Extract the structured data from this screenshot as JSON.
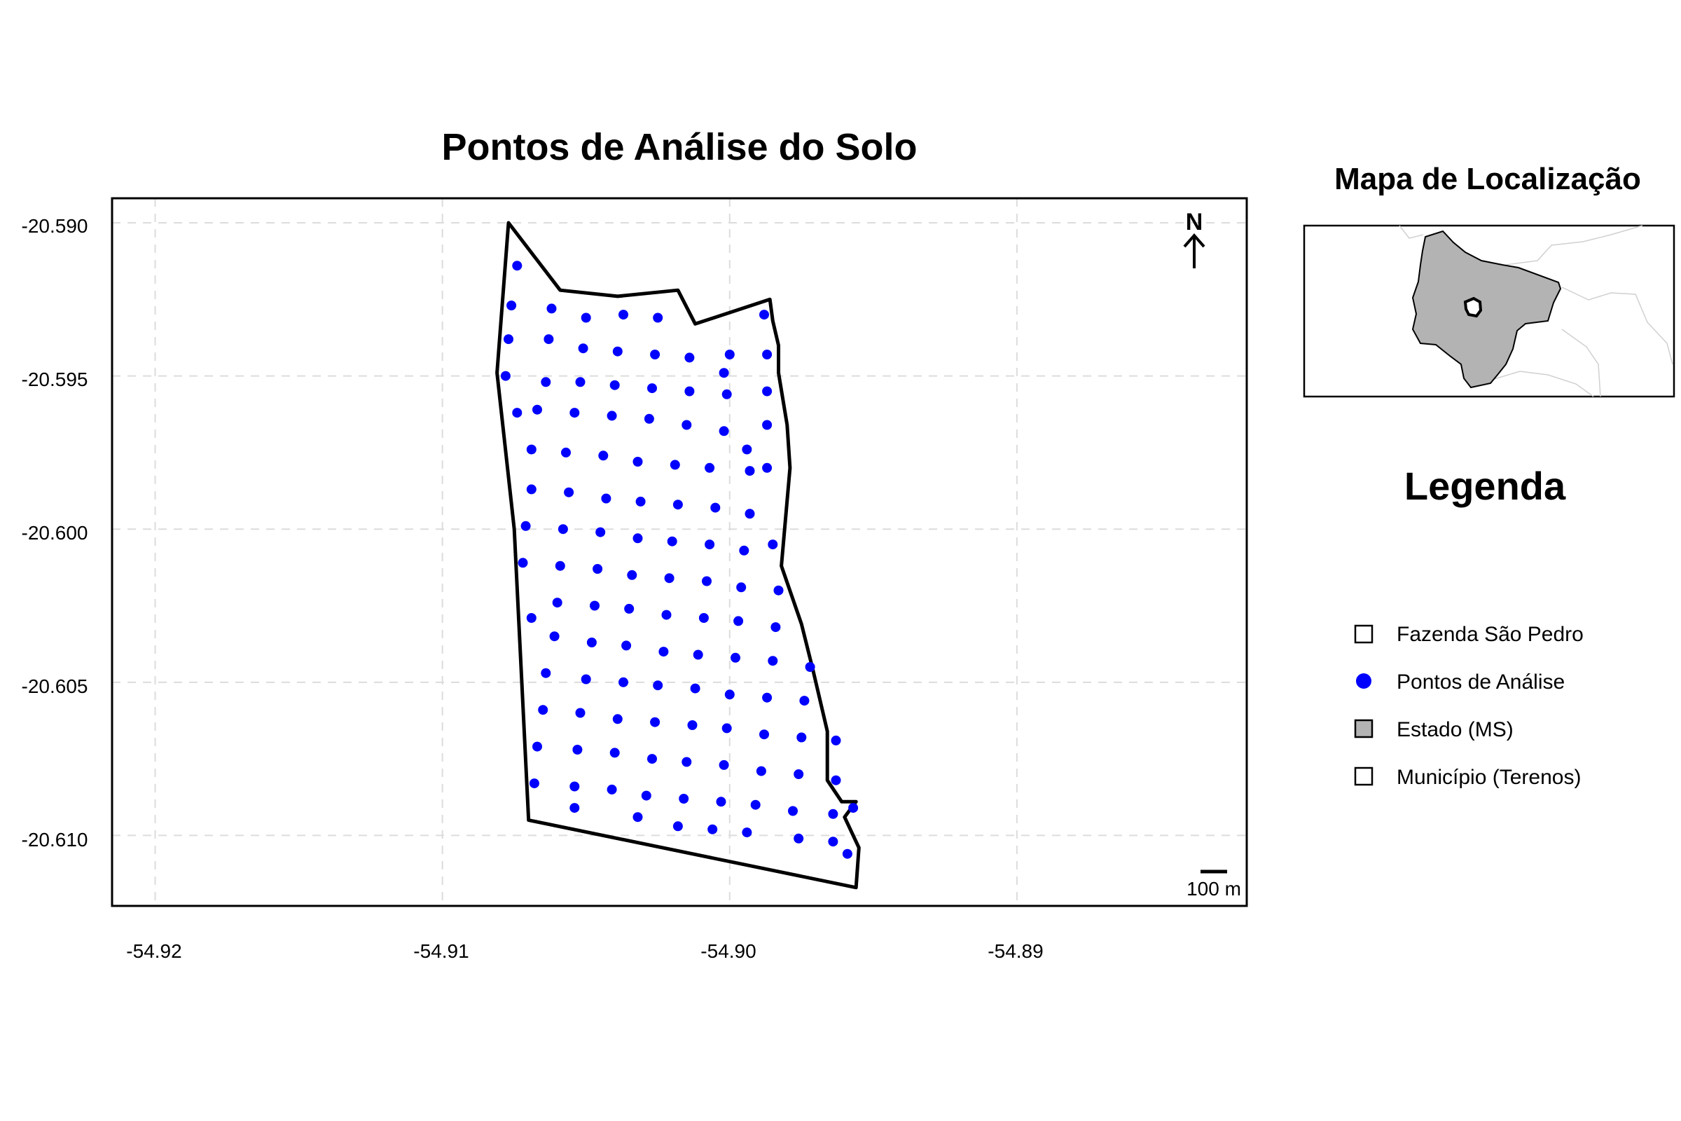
{
  "main_map": {
    "title": "Pontos de Análise do Solo",
    "x_ticks": [
      "-54.92",
      "-54.91",
      "-54.90",
      "-54.89"
    ],
    "y_ticks": [
      "-20.590",
      "-20.595",
      "-20.600",
      "-20.605",
      "-20.610"
    ],
    "north_label": "N",
    "scale_label": "100 m",
    "xlim": [
      -54.9215,
      -54.882
    ],
    "ylim": [
      -20.6123,
      -20.5892
    ],
    "grid": true,
    "boundary_color": "#000000",
    "point_color": "#0000ff"
  },
  "chart_data": {
    "type": "scatter",
    "title": "Pontos de Análise do Solo",
    "xlim": [
      -54.9215,
      -54.882
    ],
    "ylim": [
      -20.6123,
      -20.5892
    ],
    "grid": true,
    "boundary": [
      [
        -54.9077,
        -20.59
      ],
      [
        -54.9059,
        -20.5922
      ],
      [
        -54.9039,
        -20.5924
      ],
      [
        -54.9018,
        -20.5922
      ],
      [
        -54.9012,
        -20.5933
      ],
      [
        -54.8986,
        -20.5925
      ],
      [
        -54.8985,
        -20.5932
      ],
      [
        -54.8983,
        -20.594
      ],
      [
        -54.8983,
        -20.5949
      ],
      [
        -54.898,
        -20.5966
      ],
      [
        -54.8979,
        -20.598
      ],
      [
        -54.8982,
        -20.6012
      ],
      [
        -54.8975,
        -20.6031
      ],
      [
        -54.8971,
        -20.6046
      ],
      [
        -54.8966,
        -20.6066
      ],
      [
        -54.8966,
        -20.6082
      ],
      [
        -54.8961,
        -20.6089
      ],
      [
        -54.8956,
        -20.6089
      ],
      [
        -54.896,
        -20.6094
      ],
      [
        -54.8955,
        -20.6104
      ],
      [
        -54.8956,
        -20.6117
      ],
      [
        -54.907,
        -20.6095
      ],
      [
        -54.9075,
        -20.6
      ],
      [
        -54.9081,
        -20.5949
      ],
      [
        -54.9077,
        -20.59
      ]
    ],
    "points": [
      [
        -54.9074,
        -20.5914
      ],
      [
        -54.9076,
        -20.5927
      ],
      [
        -54.9062,
        -20.5928
      ],
      [
        -54.905,
        -20.5931
      ],
      [
        -54.9037,
        -20.593
      ],
      [
        -54.9025,
        -20.5931
      ],
      [
        -54.8988,
        -20.593
      ],
      [
        -54.9077,
        -20.5938
      ],
      [
        -54.9063,
        -20.5938
      ],
      [
        -54.9051,
        -20.5941
      ],
      [
        -54.9039,
        -20.5942
      ],
      [
        -54.9026,
        -20.5943
      ],
      [
        -54.9014,
        -20.5944
      ],
      [
        -54.9,
        -20.5943
      ],
      [
        -54.8987,
        -20.5943
      ],
      [
        -54.9078,
        -20.595
      ],
      [
        -54.9064,
        -20.5952
      ],
      [
        -54.9052,
        -20.5952
      ],
      [
        -54.904,
        -20.5953
      ],
      [
        -54.9027,
        -20.5954
      ],
      [
        -54.9014,
        -20.5955
      ],
      [
        -54.9002,
        -20.5949
      ],
      [
        -54.9001,
        -20.5956
      ],
      [
        -54.8987,
        -20.5955
      ],
      [
        -54.9074,
        -20.5962
      ],
      [
        -54.9067,
        -20.5961
      ],
      [
        -54.9054,
        -20.5962
      ],
      [
        -54.9041,
        -20.5963
      ],
      [
        -54.9028,
        -20.5964
      ],
      [
        -54.9015,
        -20.5966
      ],
      [
        -54.9002,
        -20.5968
      ],
      [
        -54.8987,
        -20.5966
      ],
      [
        -54.9069,
        -20.5974
      ],
      [
        -54.9057,
        -20.5975
      ],
      [
        -54.9044,
        -20.5976
      ],
      [
        -54.9032,
        -20.5978
      ],
      [
        -54.9019,
        -20.5979
      ],
      [
        -54.9007,
        -20.598
      ],
      [
        -54.8994,
        -20.5974
      ],
      [
        -54.8993,
        -20.5981
      ],
      [
        -54.8987,
        -20.598
      ],
      [
        -54.9069,
        -20.5987
      ],
      [
        -54.9056,
        -20.5988
      ],
      [
        -54.9043,
        -20.599
      ],
      [
        -54.9031,
        -20.5991
      ],
      [
        -54.9018,
        -20.5992
      ],
      [
        -54.9005,
        -20.5993
      ],
      [
        -54.8993,
        -20.5995
      ],
      [
        -54.9071,
        -20.5999
      ],
      [
        -54.9058,
        -20.6
      ],
      [
        -54.9045,
        -20.6001
      ],
      [
        -54.9032,
        -20.6003
      ],
      [
        -54.902,
        -20.6004
      ],
      [
        -54.9007,
        -20.6005
      ],
      [
        -54.8995,
        -20.6007
      ],
      [
        -54.8985,
        -20.6005
      ],
      [
        -54.9072,
        -20.6011
      ],
      [
        -54.9059,
        -20.6012
      ],
      [
        -54.9046,
        -20.6013
      ],
      [
        -54.9034,
        -20.6015
      ],
      [
        -54.9021,
        -20.6016
      ],
      [
        -54.9008,
        -20.6017
      ],
      [
        -54.8996,
        -20.6019
      ],
      [
        -54.8983,
        -20.602
      ],
      [
        -54.906,
        -20.6024
      ],
      [
        -54.9047,
        -20.6025
      ],
      [
        -54.9035,
        -20.6026
      ],
      [
        -54.9022,
        -20.6028
      ],
      [
        -54.9009,
        -20.6029
      ],
      [
        -54.8997,
        -20.603
      ],
      [
        -54.8984,
        -20.6032
      ],
      [
        -54.9069,
        -20.6029
      ],
      [
        -54.9061,
        -20.6035
      ],
      [
        -54.9048,
        -20.6037
      ],
      [
        -54.9036,
        -20.6038
      ],
      [
        -54.9023,
        -20.604
      ],
      [
        -54.9011,
        -20.6041
      ],
      [
        -54.8998,
        -20.6042
      ],
      [
        -54.8985,
        -20.6043
      ],
      [
        -54.8972,
        -20.6045
      ],
      [
        -54.9064,
        -20.6047
      ],
      [
        -54.905,
        -20.6049
      ],
      [
        -54.9037,
        -20.605
      ],
      [
        -54.9025,
        -20.6051
      ],
      [
        -54.9012,
        -20.6052
      ],
      [
        -54.9,
        -20.6054
      ],
      [
        -54.8987,
        -20.6055
      ],
      [
        -54.8974,
        -20.6056
      ],
      [
        -54.9065,
        -20.6059
      ],
      [
        -54.9052,
        -20.606
      ],
      [
        -54.9039,
        -20.6062
      ],
      [
        -54.9026,
        -20.6063
      ],
      [
        -54.9013,
        -20.6064
      ],
      [
        -54.9001,
        -20.6065
      ],
      [
        -54.8988,
        -20.6067
      ],
      [
        -54.8975,
        -20.6068
      ],
      [
        -54.8963,
        -20.6069
      ],
      [
        -54.9067,
        -20.6071
      ],
      [
        -54.9053,
        -20.6072
      ],
      [
        -54.904,
        -20.6073
      ],
      [
        -54.9027,
        -20.6075
      ],
      [
        -54.9015,
        -20.6076
      ],
      [
        -54.9002,
        -20.6077
      ],
      [
        -54.8989,
        -20.6079
      ],
      [
        -54.8976,
        -20.608
      ],
      [
        -54.8963,
        -20.6082
      ],
      [
        -54.9068,
        -20.6083
      ],
      [
        -54.9054,
        -20.6084
      ],
      [
        -54.9041,
        -20.6085
      ],
      [
        -54.9029,
        -20.6087
      ],
      [
        -54.9016,
        -20.6088
      ],
      [
        -54.9003,
        -20.6089
      ],
      [
        -54.8991,
        -20.609
      ],
      [
        -54.8978,
        -20.6092
      ],
      [
        -54.8964,
        -20.6093
      ],
      [
        -54.8957,
        -20.6091
      ],
      [
        -54.9054,
        -20.6091
      ],
      [
        -54.9032,
        -20.6094
      ],
      [
        -54.9018,
        -20.6097
      ],
      [
        -54.9006,
        -20.6098
      ],
      [
        -54.8994,
        -20.6099
      ],
      [
        -54.8964,
        -20.6102
      ],
      [
        -54.8959,
        -20.6106
      ],
      [
        -54.8976,
        -20.6101
      ]
    ]
  },
  "inset_map": {
    "title": "Mapa de Localização"
  },
  "legend": {
    "title": "Legenda",
    "items": [
      {
        "label": "Fazenda São Pedro",
        "symbol": "open-square"
      },
      {
        "label": "Pontos de Análise",
        "symbol": "blue-dot"
      },
      {
        "label": "Estado (MS)",
        "symbol": "gray-square"
      },
      {
        "label": "Município (Terenos)",
        "symbol": "open-square"
      }
    ],
    "colors": {
      "state_fill": "#b3b3b3",
      "point": "#0000ff"
    }
  }
}
